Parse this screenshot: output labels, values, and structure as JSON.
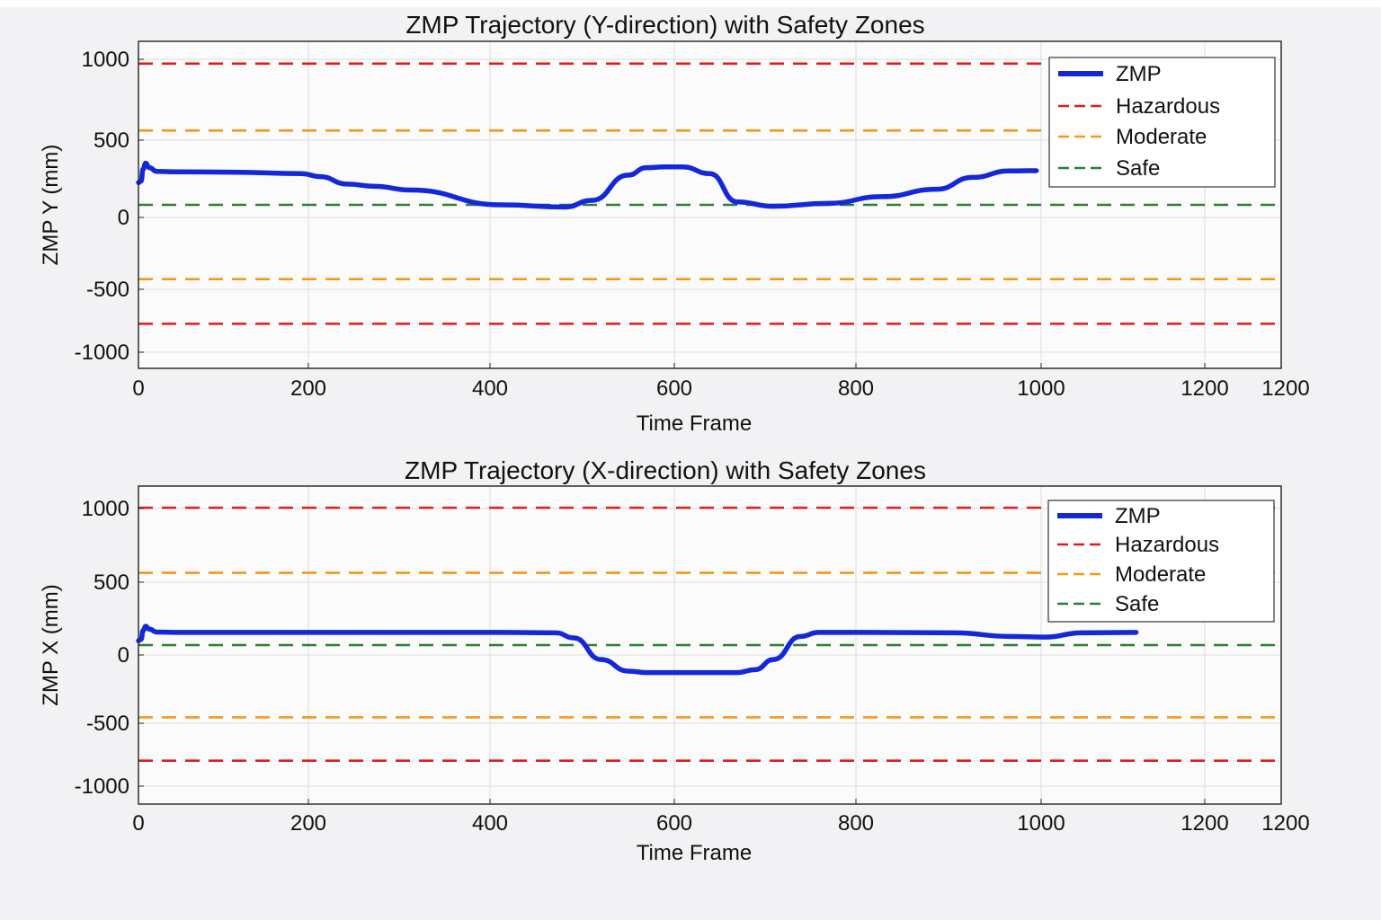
{
  "chart_data": [
    {
      "type": "line",
      "title": "ZMP Trajectory (Y-direction) with Safety Zones",
      "xlabel": "Time Frame",
      "ylabel": "ZMP Y (mm)",
      "xlim": [
        0,
        1260
      ],
      "ylim": [
        -1100,
        1100
      ],
      "xtick_labels": [
        "0",
        "200",
        "400",
        "600",
        "800",
        "1000",
        "1200",
        "1200"
      ],
      "ytick_labels": [
        "1000",
        "500",
        "0",
        "-500",
        "-1000"
      ],
      "grid": true,
      "legend_position": "top-right",
      "series": [
        {
          "name": "ZMP",
          "color": "#1428d8",
          "style": "solid",
          "x": [
            0,
            3,
            5,
            8,
            12,
            20,
            40,
            100,
            180,
            200,
            230,
            260,
            300,
            400,
            470,
            500,
            540,
            560,
            580,
            600,
            630,
            660,
            700,
            760,
            820,
            880,
            920,
            960,
            990
          ],
          "y": [
            150,
            160,
            240,
            280,
            250,
            225,
            222,
            220,
            210,
            190,
            140,
            125,
            100,
            0,
            -15,
            30,
            200,
            250,
            255,
            255,
            210,
            20,
            -10,
            10,
            55,
            105,
            185,
            228,
            230
          ]
        },
        {
          "name": "Hazardous",
          "color": "#e01b1b",
          "style": "dashed",
          "x": [
            0,
            1260
          ],
          "y": [
            950,
            950
          ]
        },
        {
          "name": "Moderate",
          "color": "#f29a1a",
          "style": "dashed",
          "x": [
            0,
            1260
          ],
          "y": [
            500,
            500
          ]
        },
        {
          "name": "Safe",
          "color": "#2e7d32",
          "style": "dashed",
          "x": [
            0,
            1260
          ],
          "y": [
            0,
            0
          ]
        },
        {
          "name": "Moderate",
          "color": "#f29a1a",
          "style": "dashed",
          "x": [
            0,
            1260
          ],
          "y": [
            -500,
            -500
          ]
        },
        {
          "name": "Hazardous",
          "color": "#e01b1b",
          "style": "dashed",
          "x": [
            0,
            1260
          ],
          "y": [
            -800,
            -800
          ]
        }
      ],
      "legend": [
        {
          "label": "ZMP",
          "color": "#1428d8",
          "style": "solid"
        },
        {
          "label": "Hazardous",
          "color": "#e01b1b",
          "style": "dashed"
        },
        {
          "label": "Moderate",
          "color": "#f29a1a",
          "style": "dashed"
        },
        {
          "label": "Safe",
          "color": "#2e7d32",
          "style": "dashed"
        }
      ]
    },
    {
      "type": "line",
      "title": "ZMP Trajectory (X-direction) with Safety Zones",
      "xlabel": "Time Frame",
      "ylabel": "ZMP X (mm)",
      "xlim": [
        0,
        1260
      ],
      "ylim": [
        -1100,
        1100
      ],
      "xtick_labels": [
        "0",
        "200",
        "400",
        "600",
        "800",
        "1000",
        "1200",
        "1200"
      ],
      "ytick_labels": [
        "1000",
        "500",
        "0",
        "-500",
        "-1000"
      ],
      "grid": true,
      "legend_position": "top-right",
      "series": [
        {
          "name": "ZMP",
          "color": "#1428d8",
          "style": "solid",
          "x": [
            0,
            3,
            5,
            8,
            12,
            20,
            40,
            200,
            400,
            460,
            480,
            510,
            540,
            560,
            600,
            660,
            680,
            700,
            730,
            750,
            800,
            900,
            960,
            1000,
            1040,
            1100
          ],
          "y": [
            30,
            40,
            100,
            130,
            110,
            90,
            88,
            88,
            88,
            85,
            50,
            -100,
            -180,
            -190,
            -190,
            -190,
            -170,
            -100,
            60,
            88,
            88,
            85,
            60,
            55,
            85,
            88
          ]
        },
        {
          "name": "Hazardous",
          "color": "#e01b1b",
          "style": "dashed",
          "x": [
            0,
            1260
          ],
          "y": [
            950,
            950
          ]
        },
        {
          "name": "Moderate",
          "color": "#f29a1a",
          "style": "dashed",
          "x": [
            0,
            1260
          ],
          "y": [
            500,
            500
          ]
        },
        {
          "name": "Safe",
          "color": "#2e7d32",
          "style": "dashed",
          "x": [
            0,
            1260
          ],
          "y": [
            0,
            0
          ]
        },
        {
          "name": "Moderate",
          "color": "#f29a1a",
          "style": "dashed",
          "x": [
            0,
            1260
          ],
          "y": [
            -500,
            -500
          ]
        },
        {
          "name": "Hazardous",
          "color": "#e01b1b",
          "style": "dashed",
          "x": [
            0,
            1260
          ],
          "y": [
            -800,
            -800
          ]
        }
      ],
      "legend": [
        {
          "label": "ZMP",
          "color": "#1428d8",
          "style": "solid"
        },
        {
          "label": "Hazardous",
          "color": "#e01b1b",
          "style": "dashed"
        },
        {
          "label": "Moderate",
          "color": "#f29a1a",
          "style": "dashed"
        },
        {
          "label": "Safe",
          "color": "#2e7d32",
          "style": "dashed"
        }
      ]
    }
  ]
}
